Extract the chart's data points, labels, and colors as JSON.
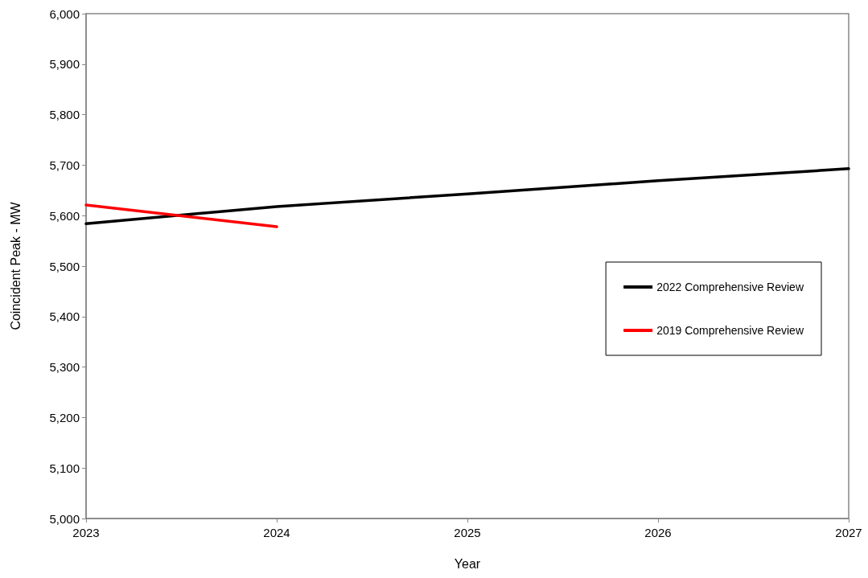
{
  "chart_data": {
    "type": "line",
    "xlabel": "Year",
    "ylabel": "Coincident Peak - MW",
    "xlim": [
      2023,
      2027
    ],
    "xticks": [
      2023,
      2024,
      2025,
      2026,
      2027
    ],
    "ylim": [
      5000,
      6000
    ],
    "yticks": [
      {
        "value": 5000,
        "label": "5,000"
      },
      {
        "value": 5100,
        "label": "5,100"
      },
      {
        "value": 5200,
        "label": "5,200"
      },
      {
        "value": 5300,
        "label": "5,300"
      },
      {
        "value": 5400,
        "label": "5,400"
      },
      {
        "value": 5500,
        "label": "5,500"
      },
      {
        "value": 5600,
        "label": "5,600"
      },
      {
        "value": 5700,
        "label": "5,700"
      },
      {
        "value": 5800,
        "label": "5,800"
      },
      {
        "value": 5900,
        "label": "5,900"
      },
      {
        "value": 6000,
        "label": "6,000"
      }
    ],
    "x": [
      2023,
      2024,
      2025,
      2026,
      2027
    ],
    "series": [
      {
        "name": "2022 Comprehensive Review",
        "color": "#000000",
        "values": [
          5584,
          5618,
          5643,
          5669,
          5693
        ]
      },
      {
        "name": "2019 Comprehensive Review",
        "color": "#ff0000",
        "x": [
          2023,
          2024
        ],
        "values": [
          5621,
          5578
        ]
      }
    ],
    "grid": false,
    "legend": "right",
    "marker": "none",
    "line_style": "solid"
  }
}
